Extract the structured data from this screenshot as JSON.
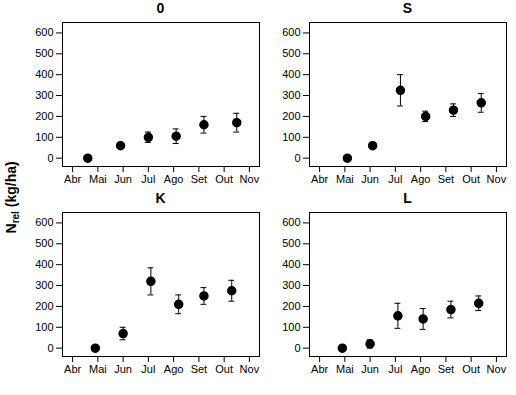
{
  "y_label": {
    "main": "N",
    "sub": "rel",
    "rest": " (kg/ha)"
  },
  "chart_data": [
    {
      "type": "scatter",
      "title": "0",
      "color": "#000000",
      "marker": "circle",
      "x": [
        0.6,
        1.9,
        3.0,
        4.1,
        5.2,
        6.5
      ],
      "values": [
        0,
        60,
        100,
        105,
        160,
        170
      ],
      "errors": [
        0,
        0,
        25,
        35,
        40,
        45
      ],
      "xlim": [
        -0.4,
        7.4
      ],
      "xticks": [
        {
          "value": 0,
          "label": "Abr"
        },
        {
          "value": 1,
          "label": "Mai"
        },
        {
          "value": 2,
          "label": "Jun"
        },
        {
          "value": 3,
          "label": "Jul"
        },
        {
          "value": 4,
          "label": "Ago"
        },
        {
          "value": 5,
          "label": "Set"
        },
        {
          "value": 6,
          "label": "Out"
        },
        {
          "value": 7,
          "label": "Nov"
        }
      ],
      "ylim": [
        -40,
        650
      ],
      "yticks": [
        0,
        100,
        200,
        300,
        400,
        500,
        600
      ]
    },
    {
      "type": "scatter",
      "title": "S",
      "color": "#000000",
      "marker": "circle",
      "x": [
        1.1,
        2.1,
        3.2,
        4.2,
        5.3,
        6.4
      ],
      "values": [
        0,
        60,
        325,
        200,
        230,
        265
      ],
      "errors": [
        0,
        0,
        75,
        25,
        30,
        45
      ],
      "xlim": [
        -0.4,
        7.4
      ],
      "xticks": [
        {
          "value": 0,
          "label": "Abr"
        },
        {
          "value": 1,
          "label": "Mai"
        },
        {
          "value": 2,
          "label": "Jun"
        },
        {
          "value": 3,
          "label": "Jul"
        },
        {
          "value": 4,
          "label": "Ago"
        },
        {
          "value": 5,
          "label": "Set"
        },
        {
          "value": 6,
          "label": "Out"
        },
        {
          "value": 7,
          "label": "Nov"
        }
      ],
      "ylim": [
        -40,
        650
      ],
      "yticks": [
        0,
        100,
        200,
        300,
        400,
        500,
        600
      ]
    },
    {
      "type": "scatter",
      "title": "K",
      "color": "#000000",
      "marker": "circle",
      "x": [
        0.9,
        2.0,
        3.1,
        4.2,
        5.2,
        6.3
      ],
      "values": [
        0,
        70,
        320,
        210,
        250,
        275
      ],
      "errors": [
        0,
        30,
        65,
        45,
        40,
        50
      ],
      "xlim": [
        -0.4,
        7.4
      ],
      "xticks": [
        {
          "value": 0,
          "label": "Abr"
        },
        {
          "value": 1,
          "label": "Mai"
        },
        {
          "value": 2,
          "label": "Jun"
        },
        {
          "value": 3,
          "label": "Jul"
        },
        {
          "value": 4,
          "label": "Ago"
        },
        {
          "value": 5,
          "label": "Set"
        },
        {
          "value": 6,
          "label": "Out"
        },
        {
          "value": 7,
          "label": "Nov"
        }
      ],
      "ylim": [
        -40,
        650
      ],
      "yticks": [
        0,
        100,
        200,
        300,
        400,
        500,
        600
      ]
    },
    {
      "type": "scatter",
      "title": "L",
      "color": "#000000",
      "marker": "circle",
      "x": [
        0.9,
        2.0,
        3.1,
        4.1,
        5.2,
        6.3
      ],
      "values": [
        0,
        20,
        155,
        140,
        185,
        215
      ],
      "errors": [
        0,
        20,
        60,
        50,
        40,
        35
      ],
      "xlim": [
        -0.4,
        7.4
      ],
      "xticks": [
        {
          "value": 0,
          "label": "Abr"
        },
        {
          "value": 1,
          "label": "Mai"
        },
        {
          "value": 2,
          "label": "Jun"
        },
        {
          "value": 3,
          "label": "Jul"
        },
        {
          "value": 4,
          "label": "Ago"
        },
        {
          "value": 5,
          "label": "Set"
        },
        {
          "value": 6,
          "label": "Out"
        },
        {
          "value": 7,
          "label": "Nov"
        }
      ],
      "ylim": [
        -40,
        650
      ],
      "yticks": [
        0,
        100,
        200,
        300,
        400,
        500,
        600
      ]
    }
  ]
}
